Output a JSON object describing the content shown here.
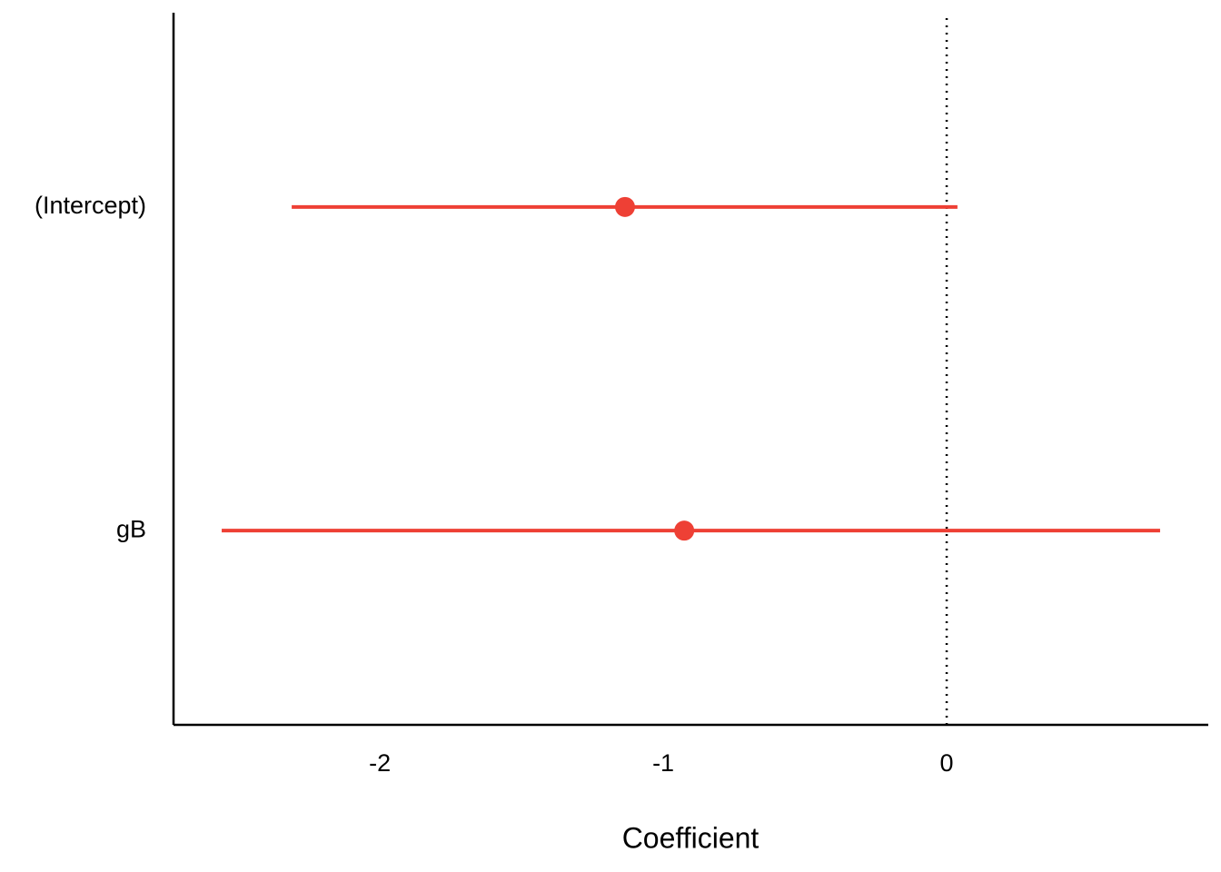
{
  "chart_data": {
    "type": "coefficient",
    "xlabel": "Coefficient",
    "categories": [
      "(Intercept)",
      "gB"
    ],
    "values": [
      -1.135,
      -0.926
    ],
    "lower": [
      -2.311,
      -2.558
    ],
    "upper": [
      0.038,
      0.753
    ],
    "color": "#ee4035",
    "xlim": [
      -2.728,
      0.923
    ],
    "xticks": [
      -2,
      -1,
      0
    ],
    "reference_line": 0
  }
}
